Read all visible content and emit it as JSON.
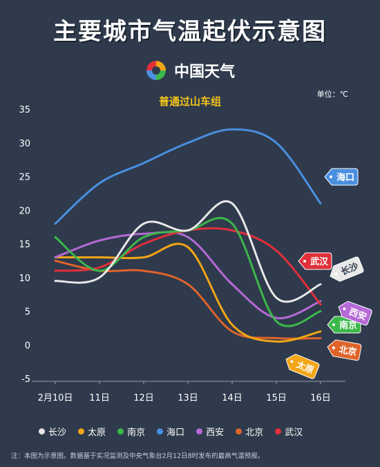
{
  "title": "主要城市气温起伏示意图",
  "brand": {
    "name": "中国天气"
  },
  "subtitle": "普通过山车组",
  "unit_label": "单位：℃",
  "note": "注：本图为示意图。数据基于实况监测及中央气象台2月12日8时发布的最高气温预报。",
  "chart_data": {
    "type": "line",
    "categories": [
      "2月10日",
      "11日",
      "12日",
      "13日",
      "14日",
      "15日",
      "16日"
    ],
    "ylim": [
      -5,
      35
    ],
    "yticks": [
      -5,
      0,
      5,
      10,
      15,
      20,
      25,
      30,
      35
    ],
    "grid": false,
    "legend": "bottom",
    "series": [
      {
        "name": "长沙",
        "color": "#e8e8e8",
        "values": [
          9.5,
          10,
          18,
          17,
          21,
          7,
          9
        ],
        "tag": true
      },
      {
        "name": "太原",
        "color": "#f2a516",
        "values": [
          13,
          13,
          13,
          14.5,
          3,
          0.5,
          2
        ],
        "tag": true
      },
      {
        "name": "南京",
        "color": "#3cb84a",
        "values": [
          16,
          11,
          16,
          17,
          18,
          3.5,
          5
        ],
        "tag": true
      },
      {
        "name": "海口",
        "color": "#4a8fe0",
        "values": [
          18,
          24,
          27,
          30,
          32,
          30,
          21
        ],
        "tag": true
      },
      {
        "name": "西安",
        "color": "#b66ad6",
        "values": [
          13,
          15.5,
          16.5,
          16,
          9,
          4,
          6.5
        ],
        "tag": true
      },
      {
        "name": "北京",
        "color": "#e0642a",
        "values": [
          12.5,
          11,
          11,
          9,
          2,
          1,
          1
        ],
        "tag": true
      },
      {
        "name": "武汉",
        "color": "#e0303a",
        "values": [
          11,
          11.5,
          15,
          17,
          17,
          14,
          6
        ],
        "tag": true
      }
    ]
  },
  "legend_items": [
    {
      "name": "长沙",
      "color": "#e8e8e8"
    },
    {
      "name": "太原",
      "color": "#f2a516"
    },
    {
      "name": "南京",
      "color": "#3cb84a"
    },
    {
      "name": "海口",
      "color": "#4a8fe0"
    },
    {
      "name": "西安",
      "color": "#b66ad6"
    },
    {
      "name": "北京",
      "color": "#e0642a"
    },
    {
      "name": "武汉",
      "color": "#e0303a"
    }
  ],
  "colors": {
    "background": "#2f3a4c",
    "accent": "#f5c518"
  }
}
